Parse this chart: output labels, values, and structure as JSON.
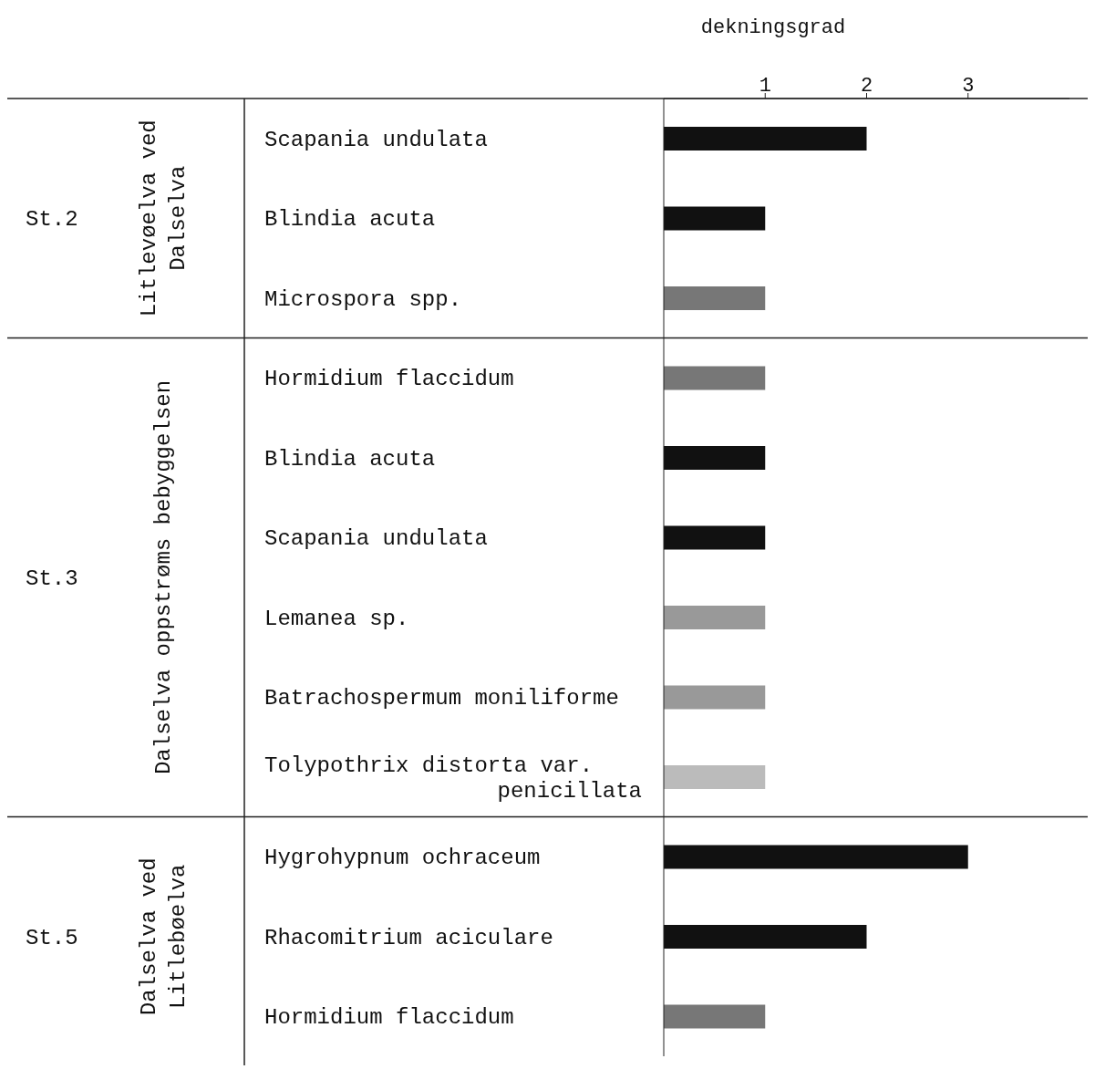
{
  "chart_data": {
    "type": "bar",
    "orientation": "horizontal",
    "xlabel": "dekningsgrad",
    "categories": [
      "Scapania undulata",
      "Blindia acuta",
      "Microspora spp.",
      "Hormidium flaccidum",
      "Blindia acuta",
      "Scapania undulata",
      "Lemanea sp.",
      "Batrachospermum moniliforme",
      "Tolypothrix distorta var.\npenicillata",
      "Hygrohypnum ochraceum",
      "Rhacomitrium aciculare",
      "Hormidium flaccidum"
    ],
    "values": [
      2,
      1,
      1,
      1,
      1,
      1,
      1,
      1,
      1,
      3,
      2,
      1
    ],
    "colors": [
      "#111111",
      "#111111",
      "#777777",
      "#777777",
      "#111111",
      "#111111",
      "#999999",
      "#999999",
      "#bbbbbb",
      "#111111",
      "#111111",
      "#777777"
    ],
    "xlim": [
      0,
      4
    ],
    "xticks": [
      1,
      2,
      3
    ],
    "grid": false,
    "annotations": [
      "St.2",
      "Litlevøelva ved\nDalselva",
      "St.3",
      "Dalselva oppstrøms bebyggelsen",
      "St.5",
      "Dalselva ved\nLitlebøelva"
    ]
  }
}
